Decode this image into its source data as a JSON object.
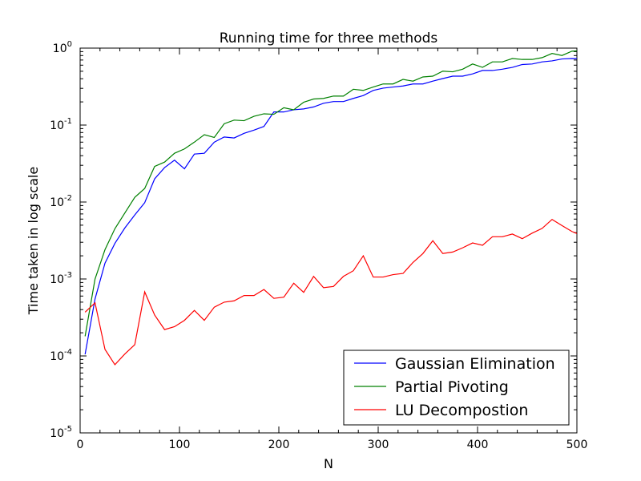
{
  "chart_data": {
    "type": "line",
    "title": "Running time for three methods",
    "xlabel": "N",
    "ylabel": "Time taken in log scale",
    "xlim": [
      0,
      500
    ],
    "ylim": [
      1e-05,
      1
    ],
    "yscale": "log",
    "grid": false,
    "legend_position": "bottom-right",
    "xticks": [
      "0",
      "100",
      "200",
      "300",
      "400",
      "500"
    ],
    "yticks": [
      {
        "base": "10",
        "exp": "-5"
      },
      {
        "base": "10",
        "exp": "-4"
      },
      {
        "base": "10",
        "exp": "-3"
      },
      {
        "base": "10",
        "exp": "-2"
      },
      {
        "base": "10",
        "exp": "-1"
      },
      {
        "base": "10",
        "exp": "0"
      }
    ],
    "x": [
      5,
      15,
      25,
      35,
      45,
      55,
      65,
      75,
      85,
      95,
      105,
      115,
      125,
      135,
      145,
      155,
      165,
      175,
      185,
      195,
      205,
      215,
      225,
      235,
      245,
      255,
      265,
      275,
      285,
      295,
      305,
      315,
      325,
      335,
      345,
      355,
      365,
      375,
      385,
      395,
      405,
      415,
      425,
      435,
      445,
      455,
      465,
      475,
      485,
      495,
      500
    ],
    "series": [
      {
        "name": "Gaussian Elimination",
        "color": "#0000ff",
        "values": [
          0.000105,
          0.00055,
          0.0016,
          0.0029,
          0.0046,
          0.0068,
          0.0098,
          0.02,
          0.028,
          0.035,
          0.027,
          0.042,
          0.043,
          0.06,
          0.07,
          0.068,
          0.078,
          0.086,
          0.096,
          0.148,
          0.148,
          0.158,
          0.162,
          0.172,
          0.192,
          0.202,
          0.202,
          0.222,
          0.242,
          0.282,
          0.302,
          0.312,
          0.322,
          0.342,
          0.342,
          0.372,
          0.402,
          0.432,
          0.432,
          0.462,
          0.512,
          0.512,
          0.532,
          0.562,
          0.612,
          0.622,
          0.662,
          0.682,
          0.722,
          0.732,
          0.73
        ]
      },
      {
        "name": "Partial Pivoting",
        "color": "#008000",
        "values": [
          0.00018,
          0.001,
          0.0024,
          0.0045,
          0.0072,
          0.0115,
          0.015,
          0.029,
          0.033,
          0.043,
          0.049,
          0.06,
          0.075,
          0.069,
          0.104,
          0.116,
          0.114,
          0.13,
          0.14,
          0.138,
          0.168,
          0.158,
          0.198,
          0.218,
          0.222,
          0.238,
          0.238,
          0.292,
          0.282,
          0.312,
          0.342,
          0.342,
          0.392,
          0.372,
          0.422,
          0.432,
          0.502,
          0.492,
          0.532,
          0.622,
          0.562,
          0.662,
          0.662,
          0.732,
          0.712,
          0.712,
          0.752,
          0.852,
          0.802,
          0.912,
          0.92
        ]
      },
      {
        "name": "LU Decompostion",
        "color": "#ff0000",
        "values": [
          0.00037,
          0.00049,
          0.000122,
          7.7e-05,
          0.000106,
          0.00014,
          0.00068,
          0.00034,
          0.00022,
          0.00024,
          0.00029,
          0.00039,
          0.00029,
          0.00043,
          0.0005,
          0.00052,
          0.00061,
          0.00061,
          0.00073,
          0.00056,
          0.00058,
          0.00088,
          0.00067,
          0.00108,
          0.00077,
          0.0008,
          0.00108,
          0.00128,
          0.002,
          0.00106,
          0.00106,
          0.00114,
          0.00118,
          0.00164,
          0.00214,
          0.00314,
          0.00214,
          0.00224,
          0.00254,
          0.00294,
          0.00274,
          0.00354,
          0.00354,
          0.00384,
          0.00334,
          0.00394,
          0.00454,
          0.00594,
          0.00494,
          0.00414,
          0.0039
        ]
      }
    ]
  }
}
